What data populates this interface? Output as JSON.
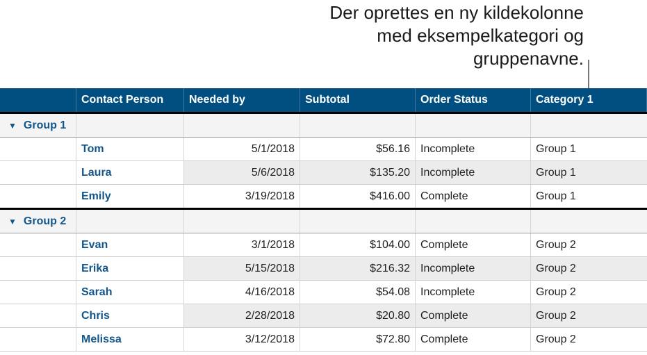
{
  "callout": {
    "lines": [
      "Der oprettes en ny kildekolonne",
      "med eksempelkategori og",
      "gruppenavne."
    ]
  },
  "colors": {
    "header_bg": "#004f80",
    "name_text": "#14568a",
    "group_bg": "#f4f4f4",
    "alt_row": "#ececec"
  },
  "table": {
    "headers": [
      "",
      "Contact Person",
      "Needed by",
      "Subtotal",
      "Order Status",
      "Category 1"
    ],
    "groups": [
      {
        "label": "Group 1",
        "icon": "disclosure-triangle-down",
        "rows": [
          [
            "Tom",
            "5/1/2018",
            "$56.16",
            "Incomplete",
            "Group 1"
          ],
          [
            "Laura",
            "5/6/2018",
            "$135.20",
            "Incomplete",
            "Group 1"
          ],
          [
            "Emily",
            "3/19/2018",
            "$416.00",
            "Complete",
            "Group 1"
          ]
        ]
      },
      {
        "label": "Group 2",
        "icon": "disclosure-triangle-down",
        "rows": [
          [
            "Evan",
            "3/1/2018",
            "$104.00",
            "Complete",
            "Group 2"
          ],
          [
            "Erika",
            "5/15/2018",
            "$216.32",
            "Incomplete",
            "Group 2"
          ],
          [
            "Sarah",
            "4/16/2018",
            "$54.08",
            "Incomplete",
            "Group 2"
          ],
          [
            "Chris",
            "2/28/2018",
            "$20.80",
            "Complete",
            "Group 2"
          ],
          [
            "Melissa",
            "3/12/2018",
            "$72.80",
            "Complete",
            "Group 2"
          ]
        ]
      }
    ]
  }
}
